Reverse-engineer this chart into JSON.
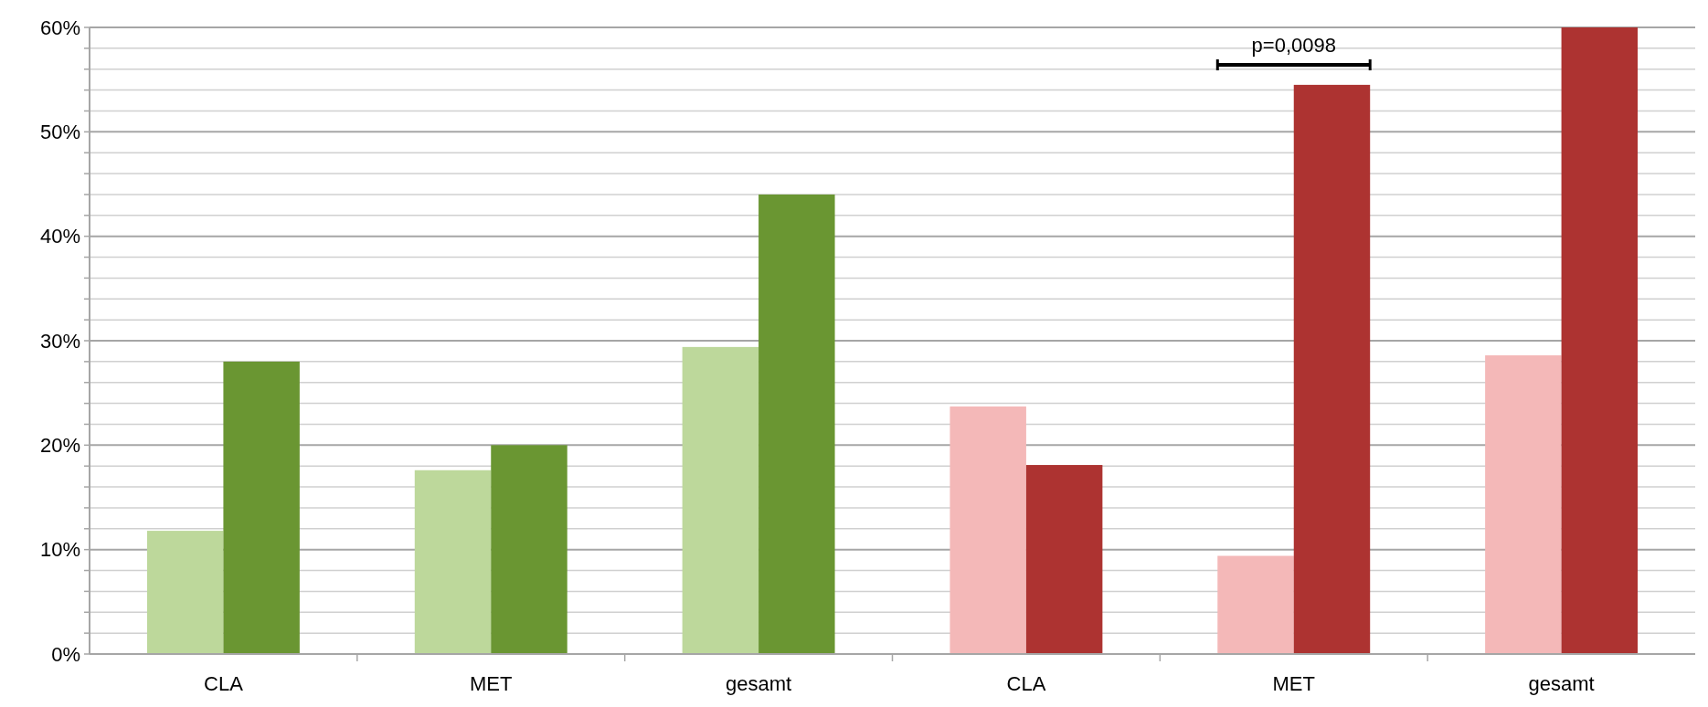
{
  "chart_data": {
    "type": "bar",
    "categories": [
      "CLA",
      "MET",
      "gesamt",
      "CLA",
      "MET",
      "gesamt"
    ],
    "series": [
      {
        "colors": [
          "#bdd89b",
          "#bdd89b",
          "#bdd89b",
          "#f4b8b8",
          "#f4b8b8",
          "#f4b8b8"
        ],
        "values": [
          11.8,
          17.6,
          29.4,
          23.7,
          9.4,
          28.6
        ]
      },
      {
        "colors": [
          "#6a9632",
          "#6a9632",
          "#6a9632",
          "#ad3331",
          "#ad3331",
          "#ad3331"
        ],
        "values": [
          28.0,
          20.0,
          44.0,
          18.1,
          54.5,
          60.0
        ]
      }
    ],
    "ylim": [
      0,
      60
    ],
    "yticks": [
      {
        "value": 0,
        "label": "0%"
      },
      {
        "value": 2,
        "label": null
      },
      {
        "value": 4,
        "label": null
      },
      {
        "value": 6,
        "label": null
      },
      {
        "value": 8,
        "label": null
      },
      {
        "value": 10,
        "label": "10%"
      },
      {
        "value": 12,
        "label": null
      },
      {
        "value": 14,
        "label": null
      },
      {
        "value": 16,
        "label": null
      },
      {
        "value": 18,
        "label": null
      },
      {
        "value": 20,
        "label": "20%"
      },
      {
        "value": 22,
        "label": null
      },
      {
        "value": 24,
        "label": null
      },
      {
        "value": 26,
        "label": null
      },
      {
        "value": 28,
        "label": null
      },
      {
        "value": 30,
        "label": "30%"
      },
      {
        "value": 32,
        "label": null
      },
      {
        "value": 34,
        "label": null
      },
      {
        "value": 36,
        "label": null
      },
      {
        "value": 38,
        "label": null
      },
      {
        "value": 40,
        "label": "40%"
      },
      {
        "value": 42,
        "label": null
      },
      {
        "value": 44,
        "label": null
      },
      {
        "value": 46,
        "label": null
      },
      {
        "value": 48,
        "label": null
      },
      {
        "value": 50,
        "label": "50%"
      },
      {
        "value": 52,
        "label": null
      },
      {
        "value": 54,
        "label": null
      },
      {
        "value": 56,
        "label": null
      },
      {
        "value": 58,
        "label": null
      },
      {
        "value": 60,
        "label": "60%"
      }
    ],
    "grid": "y",
    "annotations": [
      "p=0,0098"
    ]
  }
}
